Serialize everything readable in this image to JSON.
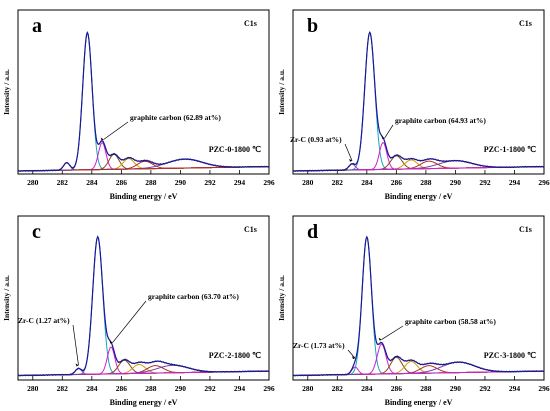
{
  "figure": {
    "panels": [
      {
        "letter": "a",
        "region": "C1s",
        "sample": "PZC-0-1800 ℃",
        "annotations": [
          {
            "text": "graphite carbon (62.89 at%)",
            "target_x": 284.8
          }
        ]
      },
      {
        "letter": "b",
        "region": "C1s",
        "sample": "PZC-1-1800 ℃",
        "annotations": [
          {
            "text": "Zr-C (0.93 at%)",
            "target_x": 283.0
          },
          {
            "text": "graphite carbon (64.93 at%)",
            "target_x": 285.2
          }
        ]
      },
      {
        "letter": "c",
        "region": "C1s",
        "sample": "PZC-2-1800 ℃",
        "annotations": [
          {
            "text": "Zr-C (1.27 at%)",
            "target_x": 283.1
          },
          {
            "text": "graphite carbon (63.70 at%)",
            "target_x": 285.4
          }
        ]
      },
      {
        "letter": "d",
        "region": "C1s",
        "sample": "PZC-3-1800 ℃",
        "annotations": [
          {
            "text": "Zr-C (1.73 at%)",
            "target_x": 283.2
          },
          {
            "text": "graphite carbon (58.58 at%)",
            "target_x": 285.0
          }
        ]
      }
    ]
  },
  "chart_data": [
    {
      "type": "line",
      "panel": "a",
      "title": "C1s",
      "xlabel": "Binding energy  / eV",
      "ylabel": "Intensity / a.u.",
      "xlim": [
        279,
        296
      ],
      "ylim": [
        0,
        1.1
      ],
      "xticks": [
        280,
        282,
        284,
        286,
        288,
        290,
        292,
        294,
        296
      ],
      "grid": false,
      "background": {
        "y0": 0.02,
        "y1": 0.05
      },
      "components": [
        {
          "name": "main",
          "center": 283.7,
          "height": 0.92,
          "width": 0.75,
          "color": "#18a5c2"
        },
        {
          "name": "graphite",
          "center": 284.7,
          "height": 0.18,
          "width": 0.6,
          "color": "#d21fd2"
        },
        {
          "name": "c3",
          "center": 285.5,
          "height": 0.1,
          "width": 0.8,
          "color": "#8a4a12"
        },
        {
          "name": "c4",
          "center": 286.5,
          "height": 0.07,
          "width": 0.9,
          "color": "#d89a00"
        },
        {
          "name": "c5",
          "center": 287.6,
          "height": 0.05,
          "width": 1.2,
          "color": "#b22b2b"
        },
        {
          "name": "c6",
          "center": 290.3,
          "height": 0.06,
          "width": 2.8,
          "color": "#7e3fa3"
        },
        {
          "name": "c0",
          "center": 282.3,
          "height": 0.05,
          "width": 0.5,
          "color": "#b22b2b"
        }
      ]
    },
    {
      "type": "line",
      "panel": "b",
      "title": "C1s",
      "xlabel": "Binding energy  / eV",
      "ylabel": "Intensity / a.u.",
      "xlim": [
        279,
        296
      ],
      "ylim": [
        0,
        1.1
      ],
      "xticks": [
        280,
        282,
        284,
        286,
        288,
        290,
        292,
        294,
        296
      ],
      "grid": false,
      "background": {
        "y0": 0.02,
        "y1": 0.05
      },
      "components": [
        {
          "name": "main",
          "center": 284.2,
          "height": 0.92,
          "width": 0.8,
          "color": "#18a5c2"
        },
        {
          "name": "graphite",
          "center": 285.1,
          "height": 0.18,
          "width": 0.6,
          "color": "#d21fd2"
        },
        {
          "name": "c3",
          "center": 286.0,
          "height": 0.09,
          "width": 0.9,
          "color": "#8a4a12"
        },
        {
          "name": "c4",
          "center": 287.0,
          "height": 0.06,
          "width": 1.0,
          "color": "#d89a00"
        },
        {
          "name": "c5",
          "center": 288.2,
          "height": 0.05,
          "width": 1.3,
          "color": "#b22b2b"
        },
        {
          "name": "c6",
          "center": 290.0,
          "height": 0.05,
          "width": 2.6,
          "color": "#7e3fa3"
        },
        {
          "name": "zrc",
          "center": 283.0,
          "height": 0.04,
          "width": 0.5,
          "color": "#d21fd2"
        }
      ]
    },
    {
      "type": "line",
      "panel": "c",
      "title": "C1s",
      "xlabel": "Binding energy  / eV",
      "ylabel": "Intensity / a.u.",
      "xlim": [
        279,
        296
      ],
      "ylim": [
        0,
        1.1
      ],
      "xticks": [
        280,
        282,
        284,
        286,
        288,
        290,
        292,
        294,
        296
      ],
      "grid": false,
      "background": {
        "y0": 0.03,
        "y1": 0.06
      },
      "components": [
        {
          "name": "main",
          "center": 284.4,
          "height": 0.92,
          "width": 0.8,
          "color": "#18a5c2"
        },
        {
          "name": "graphite",
          "center": 285.3,
          "height": 0.18,
          "width": 0.6,
          "color": "#d21fd2"
        },
        {
          "name": "c3",
          "center": 286.2,
          "height": 0.09,
          "width": 0.9,
          "color": "#8a4a12"
        },
        {
          "name": "c4",
          "center": 287.2,
          "height": 0.06,
          "width": 1.0,
          "color": "#d89a00"
        },
        {
          "name": "c5",
          "center": 288.3,
          "height": 0.05,
          "width": 1.3,
          "color": "#b22b2b"
        },
        {
          "name": "c6",
          "center": 289.5,
          "height": 0.05,
          "width": 2.5,
          "color": "#7e3fa3"
        },
        {
          "name": "zrc",
          "center": 283.1,
          "height": 0.04,
          "width": 0.5,
          "color": "#d21fd2"
        }
      ]
    },
    {
      "type": "line",
      "panel": "d",
      "title": "C1s",
      "xlabel": "Binding energy  / eV",
      "ylabel": "Intensity / a.u.",
      "xlim": [
        279,
        296
      ],
      "ylim": [
        0,
        1.1
      ],
      "xticks": [
        280,
        282,
        284,
        286,
        288,
        290,
        292,
        294,
        296
      ],
      "grid": false,
      "background": {
        "y0": 0.03,
        "y1": 0.06
      },
      "components": [
        {
          "name": "main",
          "center": 284.0,
          "height": 0.92,
          "width": 0.75,
          "color": "#18a5c2"
        },
        {
          "name": "graphite",
          "center": 285.0,
          "height": 0.2,
          "width": 0.7,
          "color": "#d21fd2"
        },
        {
          "name": "c3",
          "center": 286.0,
          "height": 0.11,
          "width": 0.9,
          "color": "#8a4a12"
        },
        {
          "name": "c4",
          "center": 287.0,
          "height": 0.08,
          "width": 1.0,
          "color": "#d89a00"
        },
        {
          "name": "c5",
          "center": 288.2,
          "height": 0.05,
          "width": 1.3,
          "color": "#b22b2b"
        },
        {
          "name": "c6",
          "center": 290.2,
          "height": 0.07,
          "width": 2.6,
          "color": "#7e3fa3"
        },
        {
          "name": "zrc",
          "center": 283.2,
          "height": 0.05,
          "width": 0.5,
          "color": "#d21fd2"
        }
      ]
    }
  ],
  "colors": {
    "envelope": "#1a1a9a",
    "raw": "#000000",
    "background": "#1f8f1f"
  }
}
